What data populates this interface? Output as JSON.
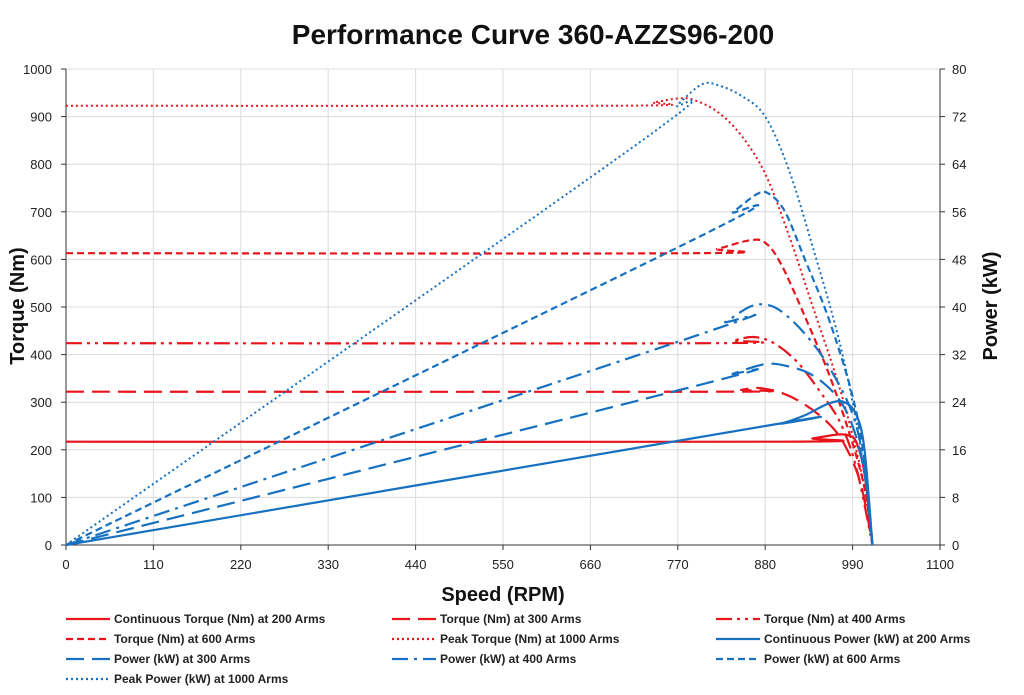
{
  "chart_data": {
    "type": "line",
    "title": "Performance Curve 360-AZZS96-200",
    "xlabel": "Speed (RPM)",
    "ylabel_left": "Torque (Nm)",
    "ylabel_right": "Power (kW)",
    "xlim": [
      0,
      1100
    ],
    "ylim_left": [
      0,
      1000
    ],
    "ylim_right": [
      0,
      80
    ],
    "x_ticks": [
      "0",
      "110",
      "220",
      "330",
      "440",
      "550",
      "660",
      "770",
      "880",
      "990",
      "1100"
    ],
    "y_left_ticks": [
      "0",
      "100",
      "200",
      "300",
      "400",
      "500",
      "600",
      "700",
      "800",
      "900",
      "1000"
    ],
    "y_right_ticks": [
      "0",
      "8",
      "16",
      "24",
      "32",
      "40",
      "48",
      "56",
      "64",
      "72",
      "80"
    ],
    "grid": true,
    "legend_position": "bottom",
    "series": [
      {
        "name": "Continuous Torque (Nm) at 200 Arms",
        "axis": "left",
        "color": "#e8141b",
        "dash": "solid",
        "x": [
          0,
          900,
          940,
          970,
          985,
          995,
          1005,
          1015
        ],
        "y": [
          217,
          217,
          224,
          232,
          230,
          215,
          150,
          0
        ]
      },
      {
        "name": "Torque (Nm) at 300 Arms",
        "axis": "left",
        "color": "#e8141b",
        "dash": "longdash",
        "x": [
          0,
          820,
          850,
          870,
          900,
          930,
          960,
          980,
          1000,
          1015
        ],
        "y": [
          322,
          322,
          326,
          330,
          320,
          295,
          255,
          210,
          130,
          0
        ]
      },
      {
        "name": "Torque (Nm) at 400 Arms",
        "axis": "left",
        "color": "#e8141b",
        "dash": "dashdotdot",
        "x": [
          0,
          810,
          840,
          865,
          890,
          920,
          950,
          975,
          995,
          1015
        ],
        "y": [
          424,
          424,
          430,
          437,
          425,
          385,
          320,
          255,
          160,
          0
        ]
      },
      {
        "name": "Torque (Nm) at 600 Arms",
        "axis": "left",
        "color": "#e8141b",
        "dash": "shortdash",
        "x": [
          0,
          790,
          820,
          860,
          880,
          900,
          930,
          960,
          985,
          1005,
          1015
        ],
        "y": [
          613,
          613,
          622,
          640,
          635,
          590,
          480,
          360,
          240,
          120,
          0
        ]
      },
      {
        "name": "Peak Torque (Nm) at 1000 Arms",
        "axis": "left",
        "color": "#e8141b",
        "dash": "dotted",
        "x": [
          0,
          700,
          740,
          770,
          790,
          820,
          850,
          880,
          910,
          940,
          970,
          990,
          1005,
          1015
        ],
        "y": [
          923,
          923,
          930,
          938,
          935,
          910,
          860,
          780,
          650,
          500,
          350,
          230,
          120,
          0
        ]
      },
      {
        "name": "Continuous Power (kW) at 200 Arms",
        "axis": "right",
        "color": "#1671c0",
        "dash": "solid",
        "x": [
          0,
          880,
          900,
          930,
          960,
          980,
          995,
          1005,
          1015
        ],
        "y": [
          0,
          20.0,
          20.4,
          21.8,
          23.8,
          24.0,
          21.8,
          16.0,
          0
        ]
      },
      {
        "name": "Power (kW) at 300 Arms",
        "axis": "right",
        "color": "#1671c0",
        "dash": "longdash",
        "x": [
          0,
          800,
          840,
          880,
          910,
          940,
          970,
          990,
          1005,
          1015
        ],
        "y": [
          0,
          27.0,
          28.8,
          30.4,
          30.0,
          28.5,
          25.0,
          20.0,
          12.0,
          0
        ]
      },
      {
        "name": "Power (kW) at 400 Arms",
        "axis": "right",
        "color": "#1671c0",
        "dash": "dashdot",
        "x": [
          0,
          800,
          830,
          860,
          880,
          900,
          930,
          960,
          990,
          1005,
          1015
        ],
        "y": [
          0,
          35.5,
          37.5,
          40.0,
          40.4,
          39.3,
          35.5,
          30.0,
          22.0,
          13.0,
          0
        ]
      },
      {
        "name": "Power (kW) at 600 Arms",
        "axis": "right",
        "color": "#1671c0",
        "dash": "shortdash",
        "x": [
          0,
          800,
          840,
          870,
          885,
          905,
          930,
          960,
          990,
          1005,
          1015
        ],
        "y": [
          0,
          52.0,
          56.0,
          59.0,
          59.0,
          56.0,
          48.0,
          38.0,
          25.0,
          14.0,
          0
        ]
      },
      {
        "name": "Peak Power (kW) at 1000 Arms",
        "axis": "right",
        "color": "#1671c0",
        "dash": "dotted",
        "x": [
          0,
          720,
          770,
          800,
          820,
          850,
          880,
          910,
          940,
          970,
          990,
          1005,
          1015
        ],
        "y": [
          0,
          67.5,
          74.0,
          77.4,
          77.3,
          75.5,
          72.0,
          63.0,
          50.0,
          36.0,
          24.0,
          12.0,
          0
        ]
      }
    ]
  }
}
